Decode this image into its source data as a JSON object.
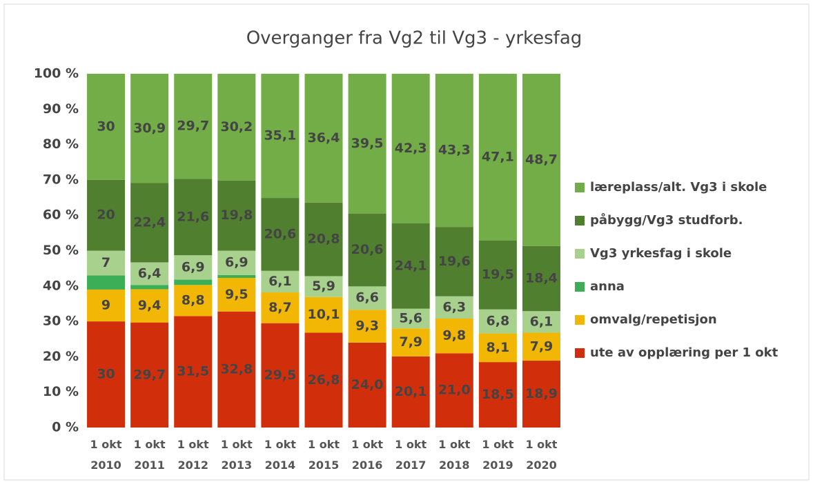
{
  "chart_data": {
    "type": "stacked_bar",
    "title": "Overganger fra Vg2 til Vg3 - yrkesfag",
    "categories": [
      "1 okt 2010",
      "1 okt 2011",
      "1 okt 2012",
      "1 okt 2013",
      "1 okt 2014",
      "1 okt 2015",
      "1 okt 2016",
      "1 okt 2017",
      "1 okt 2018",
      "1 okt 2019",
      "1 okt 2020"
    ],
    "series": [
      {
        "name": "ute av opplæring per 1 okt",
        "color": "#d12f0c",
        "label_color": "#ffffff",
        "values": [
          30,
          29.7,
          31.5,
          32.8,
          29.5,
          26.8,
          24.0,
          20.1,
          21.0,
          18.5,
          18.9
        ],
        "value_labels": [
          "30",
          "29,7",
          "31,5",
          "32,8",
          "29,5",
          "26,8",
          "24,0",
          "20,1",
          "21,0",
          "18,5",
          "18,9"
        ]
      },
      {
        "name": "omvalg/repetisjon",
        "color": "#f2b705",
        "label_color": "#404040",
        "values": [
          9,
          9.4,
          8.8,
          9.5,
          8.7,
          10.1,
          9.3,
          7.9,
          9.8,
          8.1,
          7.9
        ],
        "value_labels": [
          "9",
          "9,4",
          "8,8",
          "9,5",
          "8,7",
          "10,1",
          "9,3",
          "7,9",
          "9,8",
          "8,1",
          "7,9"
        ]
      },
      {
        "name": "anna",
        "color": "#3bae57",
        "values": [
          4,
          1.2,
          1.5,
          0.8,
          0,
          0,
          0,
          0,
          0,
          0,
          0
        ]
      },
      {
        "name": "Vg3 yrkesfag i skole",
        "color": "#a9d18e",
        "label_color": "#404040",
        "values": [
          7,
          6.4,
          6.9,
          6.9,
          6.1,
          5.9,
          6.6,
          5.6,
          6.3,
          6.8,
          6.1
        ],
        "value_labels": [
          "7",
          "6,4",
          "6,9",
          "6,9",
          "6,1",
          "5,9",
          "6,6",
          "5,6",
          "6,3",
          "6,8",
          "6,1"
        ]
      },
      {
        "name": "påbygg/Vg3 studforb.",
        "color": "#4f7f2f",
        "label_color": "#ffffff",
        "values": [
          20,
          22.4,
          21.6,
          19.8,
          20.6,
          20.8,
          20.6,
          24.1,
          19.6,
          19.5,
          18.4
        ],
        "value_labels": [
          "20",
          "22,4",
          "21,6",
          "19,8",
          "20,6",
          "20,8",
          "20,6",
          "24,1",
          "19,6",
          "19,5",
          "18,4"
        ]
      },
      {
        "name": "læreplass/alt. Vg3 i skole",
        "color": "#72ad47",
        "label_color": "#333333",
        "values": [
          30,
          30.9,
          29.7,
          30.2,
          35.1,
          36.4,
          39.5,
          42.3,
          43.3,
          47.1,
          48.7
        ],
        "value_labels": [
          "30",
          "30,9",
          "29,7",
          "30,2",
          "35,1",
          "36,4",
          "39,5",
          "42,3",
          "43,3",
          "47,1",
          "48,7"
        ]
      }
    ],
    "ylim": [
      0,
      100
    ],
    "yticks": [
      {
        "value": 0,
        "label": "0 %"
      },
      {
        "value": 10,
        "label": "10 %"
      },
      {
        "value": 20,
        "label": "20 %"
      },
      {
        "value": 30,
        "label": "30 %"
      },
      {
        "value": 40,
        "label": "40 %"
      },
      {
        "value": 50,
        "label": "50 %"
      },
      {
        "value": 60,
        "label": "60 %"
      },
      {
        "value": 70,
        "label": "70 %"
      },
      {
        "value": 80,
        "label": "80 %"
      },
      {
        "value": 90,
        "label": "90 %"
      },
      {
        "value": 100,
        "label": "100 %"
      }
    ],
    "legend": "right"
  }
}
